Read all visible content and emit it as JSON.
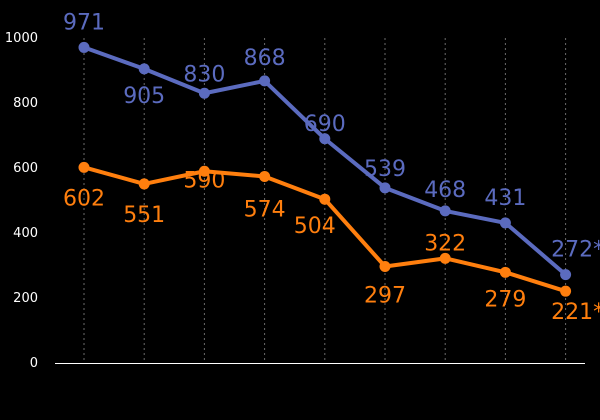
{
  "chart_data": {
    "type": "line",
    "categories": [
      "",
      "",
      "",
      "",
      "",
      "",
      "",
      "",
      ""
    ],
    "ylim": [
      0,
      1000
    ],
    "y_ticks": [
      0,
      200,
      400,
      600,
      800,
      1000
    ],
    "grid": {
      "vertical": true,
      "horizontal": false
    },
    "series": [
      {
        "color": "#5b6bbf",
        "values": [
          971,
          905,
          830,
          868,
          690,
          539,
          468,
          431,
          272
        ],
        "labels": [
          "971",
          "905",
          "830",
          "868",
          "690",
          "539",
          "468",
          "431",
          "272*"
        ]
      },
      {
        "color": "#ff7f0e",
        "values": [
          602,
          551,
          590,
          574,
          504,
          297,
          322,
          279,
          221
        ],
        "labels": [
          "602",
          "551",
          "590",
          "574",
          "504",
          "297",
          "322",
          "279",
          "221*"
        ]
      }
    ]
  }
}
